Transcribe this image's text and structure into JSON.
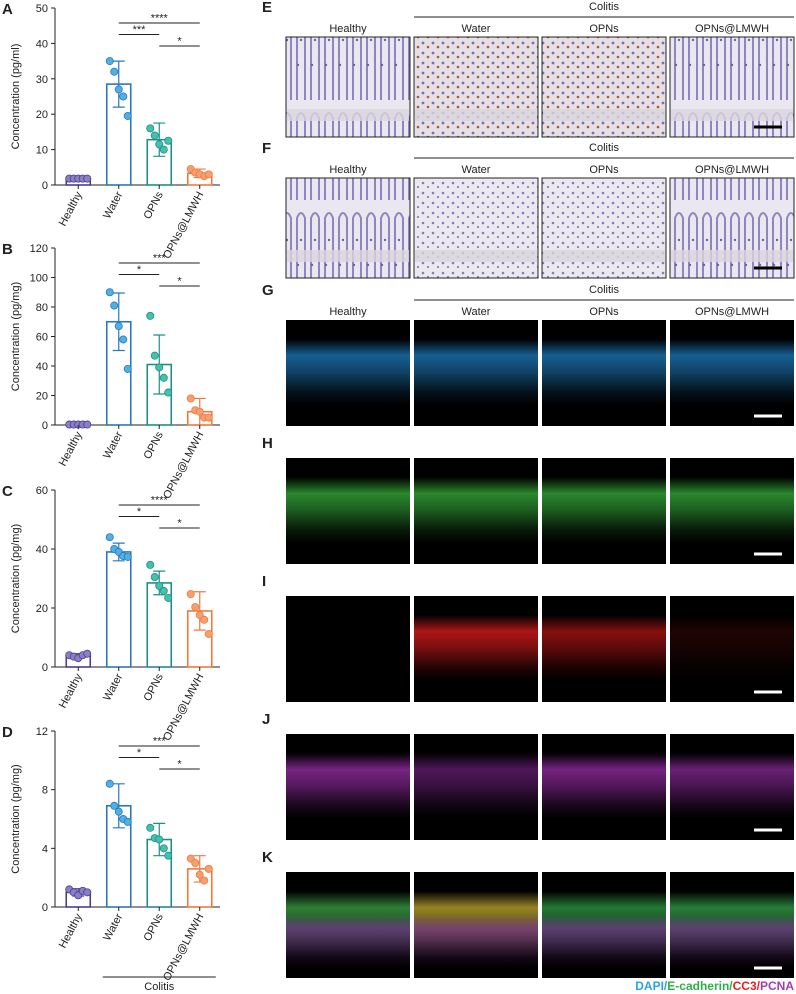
{
  "chart_data": [
    {
      "type": "bar",
      "panel_label": "A",
      "y_label": "Concentration (pg/ml)",
      "categories": [
        "Healthy",
        "Water",
        "OPNs",
        "OPNs@LMWH"
      ],
      "values": [
        1.8,
        28.5,
        12.8,
        3.3
      ],
      "errors": [
        0.1,
        6.5,
        4.7,
        1.2
      ],
      "points": [
        [
          1.8,
          1.8,
          1.8,
          1.8,
          1.8
        ],
        [
          35,
          32,
          27,
          25,
          19.5
        ],
        [
          16,
          14,
          11.5,
          10,
          12.5
        ],
        [
          4.5,
          3.5,
          3,
          2.5,
          3
        ]
      ],
      "colors": [
        "#4b3f8f",
        "#2a78bd",
        "#1f8f86",
        "#ef7a3f"
      ],
      "point_colors": [
        "#8a7fc2",
        "#4fb0e4",
        "#44c0ae",
        "#f5a070"
      ],
      "ylim": [
        0,
        50
      ],
      "yticks": [
        0,
        10,
        20,
        30,
        40,
        50
      ],
      "significance": [
        {
          "pair": [
            1,
            3
          ],
          "label": "****"
        },
        {
          "pair": [
            1,
            2
          ],
          "label": "***"
        },
        {
          "pair": [
            2,
            3
          ],
          "label": "*"
        }
      ]
    },
    {
      "type": "bar",
      "panel_label": "B",
      "y_label": "Concentration (pg/mg)",
      "categories": [
        "Healthy",
        "Water",
        "OPNs",
        "OPNs@LMWH"
      ],
      "values": [
        0.3,
        70,
        41,
        9
      ],
      "errors": [
        0.2,
        19.5,
        20,
        9
      ],
      "points": [
        [
          0.3,
          0.3,
          0.3,
          0.3,
          0.3
        ],
        [
          90,
          81,
          67,
          58,
          38
        ],
        [
          74,
          47,
          39,
          32,
          22
        ],
        [
          18,
          10,
          9,
          5,
          5
        ]
      ],
      "colors": [
        "#4b3f8f",
        "#2a78bd",
        "#1f8f86",
        "#ef7a3f"
      ],
      "point_colors": [
        "#8a7fc2",
        "#4fb0e4",
        "#44c0ae",
        "#f5a070"
      ],
      "ylim": [
        0,
        120
      ],
      "yticks": [
        0,
        20,
        40,
        60,
        80,
        100,
        120
      ],
      "significance": [
        {
          "pair": [
            1,
            3
          ],
          "label": "***"
        },
        {
          "pair": [
            1,
            2
          ],
          "label": "*"
        },
        {
          "pair": [
            2,
            3
          ],
          "label": "*"
        }
      ]
    },
    {
      "type": "bar",
      "panel_label": "C",
      "y_label": "Concentration (pg/mg)",
      "categories": [
        "Healthy",
        "Water",
        "OPNs",
        "OPNs@LMWH"
      ],
      "values": [
        3.8,
        39,
        28.5,
        19
      ],
      "errors": [
        0.7,
        3,
        4,
        6.5
      ],
      "points": [
        [
          4,
          3.5,
          3,
          4,
          4.5
        ],
        [
          44,
          40,
          39,
          37.6,
          37.3
        ],
        [
          34.6,
          30.5,
          27.5,
          25.8,
          23.4
        ],
        [
          24.7,
          20.3,
          17.6,
          16,
          11.2
        ]
      ],
      "colors": [
        "#4b3f8f",
        "#2a78bd",
        "#1f8f86",
        "#ef7a3f"
      ],
      "point_colors": [
        "#8a7fc2",
        "#4fb0e4",
        "#44c0ae",
        "#f5a070"
      ],
      "ylim": [
        0,
        60
      ],
      "yticks": [
        0,
        20,
        40,
        60
      ],
      "significance": [
        {
          "pair": [
            1,
            3
          ],
          "label": "****"
        },
        {
          "pair": [
            1,
            2
          ],
          "label": "*"
        },
        {
          "pair": [
            2,
            3
          ],
          "label": "*"
        }
      ]
    },
    {
      "type": "bar",
      "panel_label": "D",
      "y_label": "Concentration (pg/mg)",
      "categories": [
        "Healthy",
        "Water",
        "OPNs",
        "OPNs@LMWH"
      ],
      "values": [
        1.0,
        6.9,
        4.6,
        2.6
      ],
      "errors": [
        0.25,
        1.5,
        1.1,
        0.9
      ],
      "points": [
        [
          1.2,
          1.0,
          0.8,
          1.1,
          1.0
        ],
        [
          8.4,
          6.9,
          6.5,
          6,
          5.8
        ],
        [
          5.4,
          4.7,
          4.6,
          4,
          3.5
        ],
        [
          3.3,
          3,
          2.2,
          1.8,
          2.6
        ]
      ],
      "colors": [
        "#4b3f8f",
        "#2a78bd",
        "#1f8f86",
        "#ef7a3f"
      ],
      "point_colors": [
        "#8a7fc2",
        "#4fb0e4",
        "#44c0ae",
        "#f5a070"
      ],
      "ylim": [
        0,
        12
      ],
      "yticks": [
        0,
        4,
        8,
        12
      ],
      "significance": [
        {
          "pair": [
            1,
            3
          ],
          "label": "***"
        },
        {
          "pair": [
            1,
            2
          ],
          "label": "*"
        },
        {
          "pair": [
            2,
            3
          ],
          "label": "*"
        }
      ],
      "group_label": "Colitis"
    }
  ],
  "image_figure": {
    "group_label": "Colitis",
    "columns": [
      "Healthy",
      "Water",
      "OPNs",
      "OPNs@LMWH"
    ],
    "rows": [
      "E",
      "F",
      "G",
      "H",
      "I",
      "J",
      "K"
    ],
    "legend": [
      {
        "text": "DAPI",
        "color": "#29a3e0"
      },
      {
        "text": "/",
        "color": "#29a3e0"
      },
      {
        "text": "E-cadherin",
        "color": "#2db04a"
      },
      {
        "text": "/",
        "color": "#2db04a"
      },
      {
        "text": "CC3",
        "color": "#e02424"
      },
      {
        "text": "/",
        "color": "#e02424"
      },
      {
        "text": "PCNA",
        "color": "#a03cb4"
      }
    ]
  }
}
